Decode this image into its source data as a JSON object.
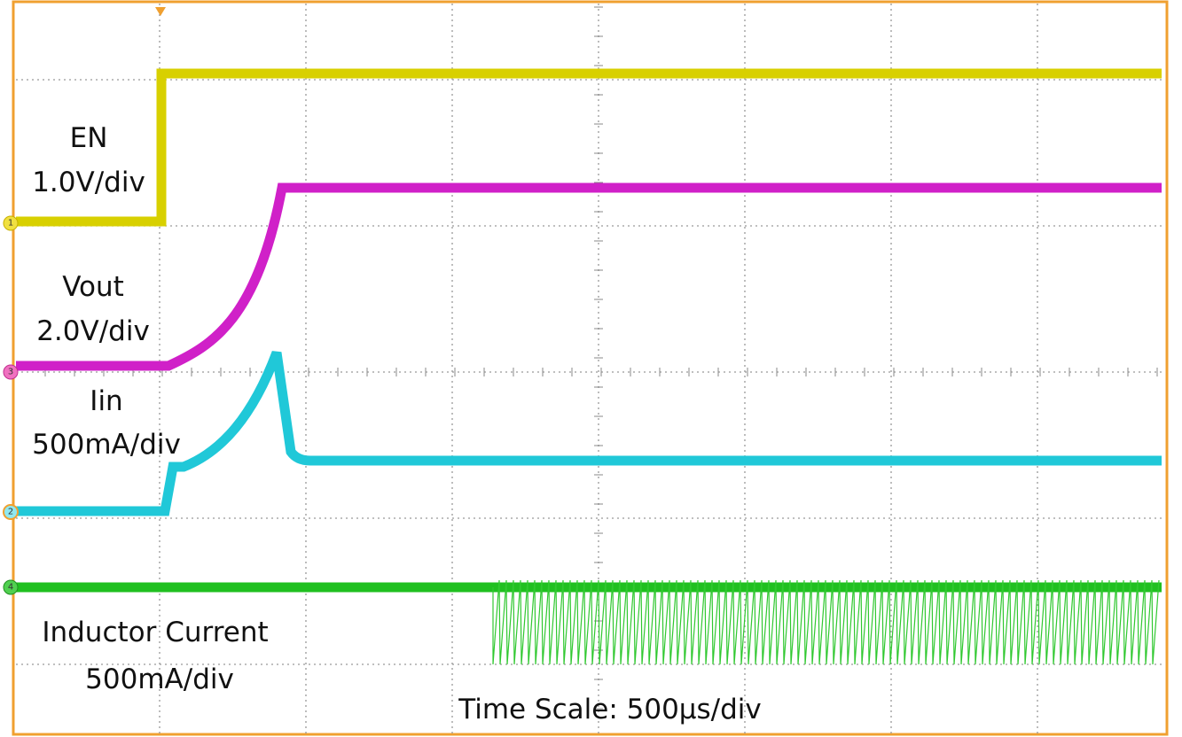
{
  "labels": {
    "en": {
      "name": "EN",
      "scale": "1.0V/div"
    },
    "vout": {
      "name": "Vout",
      "scale": "2.0V/div"
    },
    "iin": {
      "name": "Iin",
      "scale": "500mA/div"
    },
    "inductor": {
      "name": "Inductor Current",
      "scale": "500mA/div"
    }
  },
  "channels": [
    "1",
    "3",
    "2",
    "4"
  ],
  "time_scale": "Time Scale: 500µs/div"
}
